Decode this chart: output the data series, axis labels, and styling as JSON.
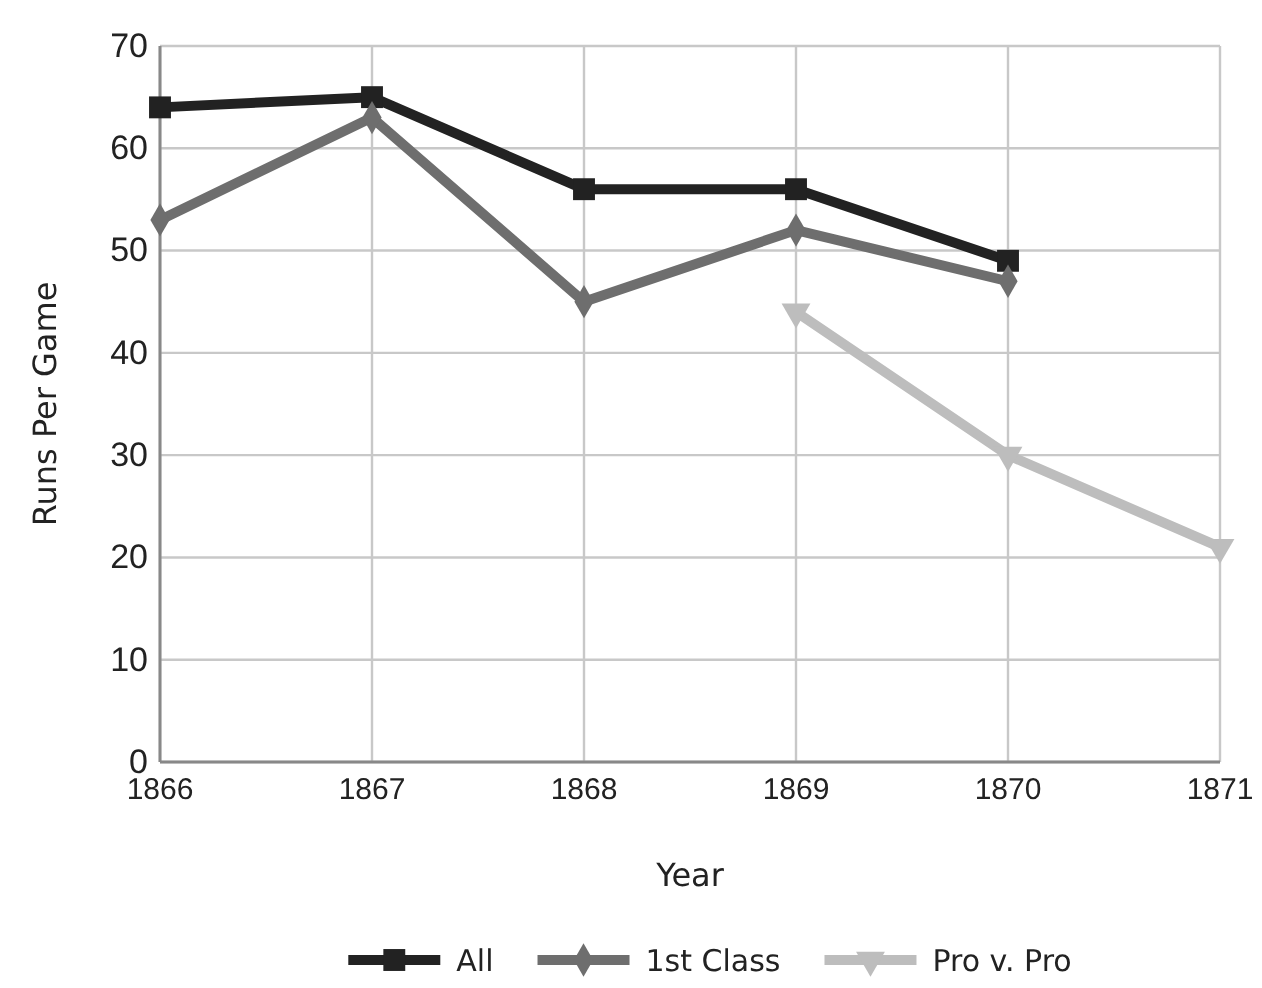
{
  "chart_data": {
    "type": "line",
    "xlabel": "Year",
    "ylabel": "Runs Per Game",
    "x": [
      1866,
      1867,
      1868,
      1869,
      1870,
      1871
    ],
    "xlim": [
      1866,
      1871
    ],
    "xticks": [
      1866,
      1867,
      1868,
      1869,
      1870,
      1871
    ],
    "ylim": [
      0,
      70
    ],
    "yticks": [
      0,
      10,
      20,
      30,
      40,
      50,
      60,
      70
    ],
    "grid": true,
    "legend": "bottom",
    "line_style": "solid",
    "series": [
      {
        "name": "All",
        "color": "#222222",
        "marker": "square",
        "values": [
          64,
          65,
          56,
          56,
          49,
          null
        ]
      },
      {
        "name": "1st Class",
        "color": "#6e6e6e",
        "marker": "diamond",
        "values": [
          53,
          63,
          45,
          52,
          47,
          null
        ]
      },
      {
        "name": "Pro v. Pro",
        "color": "#bdbdbd",
        "marker": "triangle",
        "values": [
          null,
          null,
          null,
          44,
          30,
          21
        ]
      }
    ]
  }
}
